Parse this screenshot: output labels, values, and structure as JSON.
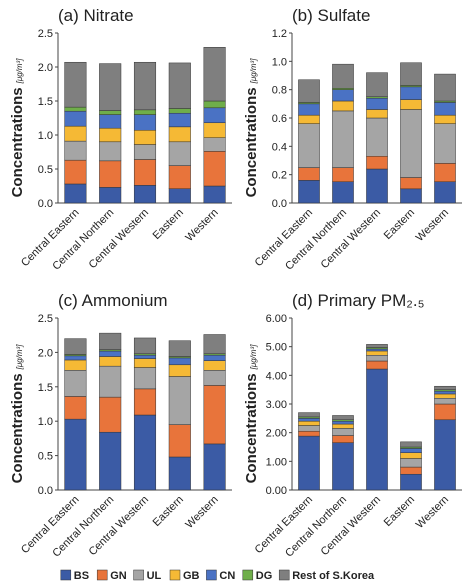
{
  "chart_data": [
    {
      "type": "stacked_bar",
      "title": "(a) Nitrate",
      "y_label": "Concentrations",
      "y_unit": "[μg/m³]",
      "categories": [
        "Central Eastern",
        "Central Northern",
        "Central Western",
        "Eastern",
        "Western"
      ],
      "ylim": [
        0,
        2.5
      ],
      "yticks": [
        {
          "value": 0,
          "label": "0.0"
        },
        0.5,
        {
          "value": 1,
          "label": "1.0"
        },
        1.5,
        {
          "value": 2,
          "label": "2.0"
        },
        2.5
      ],
      "series": [
        {
          "name": "BS",
          "color": "#3b5ba5",
          "values": [
            0.28,
            0.23,
            0.26,
            0.21,
            0.25
          ]
        },
        {
          "name": "GN",
          "color": "#e8743b",
          "values": [
            0.35,
            0.39,
            0.38,
            0.34,
            0.51
          ]
        },
        {
          "name": "UL",
          "color": "#a5a5a5",
          "values": [
            0.28,
            0.28,
            0.22,
            0.35,
            0.2
          ]
        },
        {
          "name": "GB",
          "color": "#f5b935",
          "values": [
            0.22,
            0.2,
            0.21,
            0.22,
            0.22
          ]
        },
        {
          "name": "CN",
          "color": "#4a72c4",
          "values": [
            0.22,
            0.2,
            0.23,
            0.2,
            0.22
          ]
        },
        {
          "name": "DG",
          "color": "#6fae4a",
          "values": [
            0.06,
            0.06,
            0.07,
            0.07,
            0.1
          ]
        },
        {
          "name": "Rest of S.Korea",
          "color": "#7f7f7f",
          "values": [
            0.66,
            0.69,
            0.7,
            0.67,
            0.79
          ]
        }
      ]
    },
    {
      "type": "stacked_bar",
      "title": "(b) Sulfate",
      "y_label": "Concentrations",
      "y_unit": "[μg/m³]",
      "categories": [
        "Central Eastern",
        "Central Northern",
        "Central Western",
        "Eastern",
        "Western"
      ],
      "ylim": [
        0,
        1.2
      ],
      "yticks": [
        {
          "value": 0,
          "label": "0.0"
        },
        0.2,
        0.4,
        0.6,
        0.8,
        {
          "value": 1,
          "label": "1.0"
        },
        1.2
      ],
      "series": [
        {
          "name": "BS",
          "color": "#3b5ba5",
          "values": [
            0.16,
            0.15,
            0.24,
            0.1,
            0.15
          ]
        },
        {
          "name": "GN",
          "color": "#e8743b",
          "values": [
            0.09,
            0.1,
            0.09,
            0.08,
            0.13
          ]
        },
        {
          "name": "UL",
          "color": "#a5a5a5",
          "values": [
            0.31,
            0.4,
            0.27,
            0.48,
            0.28
          ]
        },
        {
          "name": "GB",
          "color": "#f5b935",
          "values": [
            0.06,
            0.07,
            0.06,
            0.07,
            0.06
          ]
        },
        {
          "name": "CN",
          "color": "#4a72c4",
          "values": [
            0.08,
            0.08,
            0.08,
            0.09,
            0.09
          ]
        },
        {
          "name": "DG",
          "color": "#6fae4a",
          "values": [
            0.01,
            0.01,
            0.01,
            0.01,
            0.01
          ]
        },
        {
          "name": "Rest of S.Korea",
          "color": "#7f7f7f",
          "values": [
            0.16,
            0.17,
            0.17,
            0.16,
            0.19
          ]
        }
      ]
    },
    {
      "type": "stacked_bar",
      "title": "(c) Ammonium",
      "y_label": "Concentrations",
      "y_unit": "[μg/m³]",
      "categories": [
        "Central Eastern",
        "Central Northern",
        "Central Western",
        "Eastern",
        "Western"
      ],
      "ylim": [
        0,
        2.5
      ],
      "yticks": [
        {
          "value": 0,
          "label": "0.0"
        },
        0.5,
        {
          "value": 1,
          "label": "1.0"
        },
        1.5,
        {
          "value": 2,
          "label": "2.0"
        },
        2.5
      ],
      "series": [
        {
          "name": "BS",
          "color": "#3b5ba5",
          "values": [
            1.03,
            0.84,
            1.09,
            0.48,
            0.67
          ]
        },
        {
          "name": "GN",
          "color": "#e8743b",
          "values": [
            0.33,
            0.51,
            0.38,
            0.47,
            0.85
          ]
        },
        {
          "name": "UL",
          "color": "#a5a5a5",
          "values": [
            0.38,
            0.45,
            0.31,
            0.7,
            0.22
          ]
        },
        {
          "name": "GB",
          "color": "#f5b935",
          "values": [
            0.15,
            0.14,
            0.13,
            0.17,
            0.14
          ]
        },
        {
          "name": "CN",
          "color": "#4a72c4",
          "values": [
            0.06,
            0.08,
            0.05,
            0.1,
            0.08
          ]
        },
        {
          "name": "DG",
          "color": "#6fae4a",
          "values": [
            0.02,
            0.02,
            0.02,
            0.02,
            0.02
          ]
        },
        {
          "name": "Rest of S.Korea",
          "color": "#7f7f7f",
          "values": [
            0.23,
            0.24,
            0.23,
            0.23,
            0.28
          ]
        }
      ]
    },
    {
      "type": "stacked_bar",
      "title": "(d) Primary PM₂.₅",
      "y_label": "Concentrations",
      "y_unit": "[μg/m³]",
      "categories": [
        "Central Eastern",
        "Central Northern",
        "Central Western",
        "Eastern",
        "Western"
      ],
      "ylim": [
        0,
        6
      ],
      "yticks": [
        {
          "value": 0,
          "label": "0.00"
        },
        {
          "value": 1,
          "label": "1.00"
        },
        {
          "value": 2,
          "label": "2.00"
        },
        {
          "value": 3,
          "label": "3.00"
        },
        {
          "value": 4,
          "label": "4.00"
        },
        {
          "value": 5,
          "label": "5.00"
        },
        {
          "value": 6,
          "label": "6.00"
        }
      ],
      "series": [
        {
          "name": "BS",
          "color": "#3b5ba5",
          "values": [
            1.88,
            1.65,
            4.22,
            0.55,
            2.45
          ]
        },
        {
          "name": "GN",
          "color": "#e8743b",
          "values": [
            0.17,
            0.25,
            0.28,
            0.25,
            0.55
          ]
        },
        {
          "name": "UL",
          "color": "#a5a5a5",
          "values": [
            0.2,
            0.25,
            0.2,
            0.3,
            0.2
          ]
        },
        {
          "name": "GB",
          "color": "#f5b935",
          "values": [
            0.15,
            0.15,
            0.15,
            0.2,
            0.15
          ]
        },
        {
          "name": "CN",
          "color": "#4a72c4",
          "values": [
            0.1,
            0.1,
            0.07,
            0.15,
            0.1
          ]
        },
        {
          "name": "DG",
          "color": "#6fae4a",
          "values": [
            0.05,
            0.05,
            0.05,
            0.05,
            0.05
          ]
        },
        {
          "name": "Rest of S.Korea",
          "color": "#7f7f7f",
          "values": [
            0.15,
            0.15,
            0.11,
            0.18,
            0.12
          ]
        }
      ]
    }
  ]
}
